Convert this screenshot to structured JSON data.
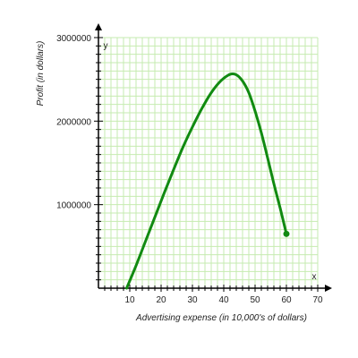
{
  "chart_data": {
    "type": "line",
    "xlabel": "Advertising expense (in 10,000's of dollars)",
    "ylabel": "Profit (in dollars)",
    "x_axis_letter": "x",
    "y_axis_letter": "y",
    "xlim": [
      0,
      70
    ],
    "ylim": [
      0,
      3000000
    ],
    "x_ticks": [
      10,
      20,
      30,
      40,
      50,
      60,
      70
    ],
    "y_ticks": [
      1000000,
      2000000,
      3000000
    ],
    "grid": true,
    "colors": {
      "grid": "#c6ebb0",
      "curve": "#118a11",
      "axis": "#000000"
    },
    "series": [
      {
        "x": [
          9,
          12,
          15,
          18,
          21,
          24,
          27,
          30,
          33,
          36,
          39,
          42,
          44,
          46,
          48,
          50,
          52,
          54,
          56,
          58,
          60
        ],
        "y": [
          0,
          270000,
          560000,
          850000,
          1140000,
          1420000,
          1690000,
          1930000,
          2150000,
          2340000,
          2480000,
          2560000,
          2555000,
          2480000,
          2340000,
          2120000,
          1860000,
          1560000,
          1250000,
          960000,
          650000
        ],
        "end_marker": true
      }
    ]
  }
}
